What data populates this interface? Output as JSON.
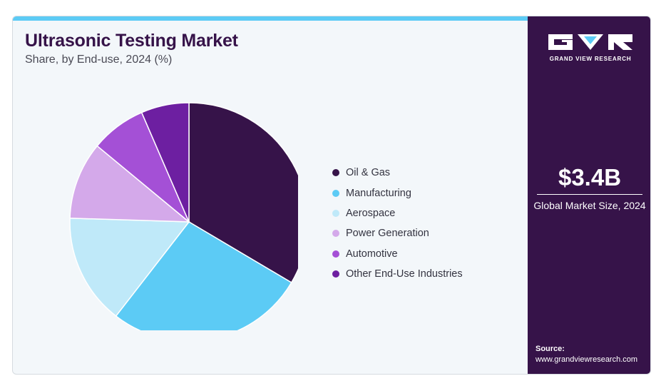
{
  "header": {
    "title": "Ultrasonic Testing Market",
    "subtitle": "Share, by End-use, 2024 (%)"
  },
  "colors": {
    "accent_bar": "#5ccbf5",
    "brand_panel": "#361349",
    "card_background": "#f3f7fa"
  },
  "chart_data": {
    "type": "pie",
    "title": "Ultrasonic Testing Market",
    "subtitle": "Share, by End-use, 2024 (%)",
    "legend_position": "right",
    "slices": [
      {
        "label": "Oil & Gas",
        "value": 33.5,
        "color": "#361349"
      },
      {
        "label": "Manufacturing",
        "value": 27.0,
        "color": "#5ccbf5"
      },
      {
        "label": "Aerospace",
        "value": 15.0,
        "color": "#bfe9f9"
      },
      {
        "label": "Power Generation",
        "value": 10.5,
        "color": "#d4a9ea"
      },
      {
        "label": "Automotive",
        "value": 7.5,
        "color": "#a450d6"
      },
      {
        "label": "Other End-Use Industries",
        "value": 6.5,
        "color": "#6d1fa1"
      }
    ]
  },
  "sidebar": {
    "logo_icon": "grand-view-research-logo",
    "logo_text": "GRAND VIEW RESEARCH",
    "market_size": "$3.4B",
    "market_size_label": "Global Market Size, 2024",
    "source_label": "Source:",
    "source_url": "www.grandviewresearch.com"
  }
}
